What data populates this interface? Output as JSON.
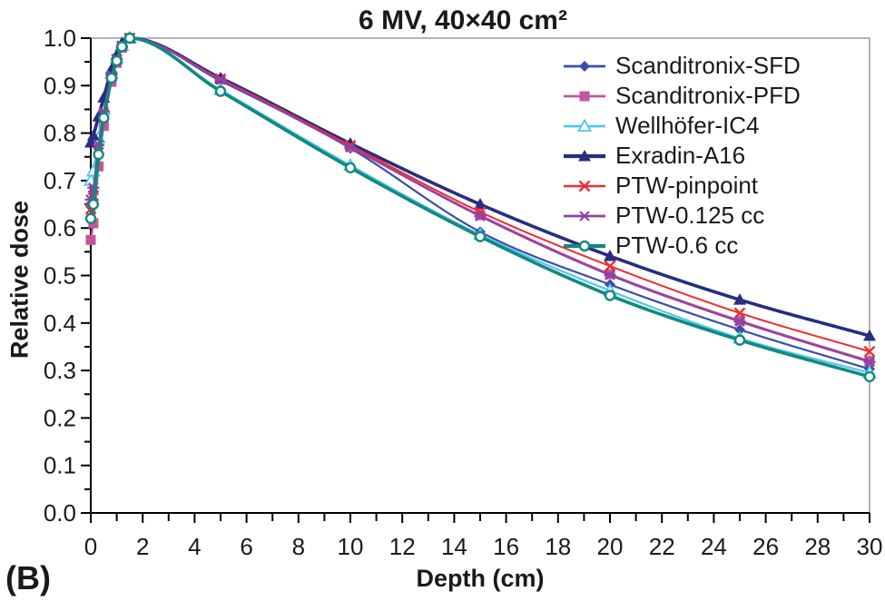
{
  "figure_label": "(B)",
  "chart_data": {
    "type": "line",
    "title": "6 MV, 40×40 cm²",
    "xlabel": "Depth (cm)",
    "ylabel": "Relative dose",
    "xlim": [
      0,
      30
    ],
    "ylim": [
      0.0,
      1.0
    ],
    "x_major_tick_step": 2,
    "x_minor_tick_step": 1,
    "y_major_tick_step": 0.1,
    "y_minor_tick_step": 0.05,
    "grid": false,
    "legend_position": "top-right",
    "frame_color": "#b3b3b3",
    "axis_color": "#000000",
    "x": [
      0,
      0.1,
      0.3,
      0.5,
      0.8,
      1.0,
      1.2,
      1.5,
      5,
      10,
      15,
      20,
      25,
      30
    ],
    "series": [
      {
        "name": "Scanditronix-SFD",
        "color": "#3d4ea8",
        "marker": "diamond",
        "line_width": 2.2,
        "values": [
          0.645,
          0.672,
          0.768,
          0.84,
          0.92,
          0.955,
          0.983,
          1.0,
          0.91,
          0.768,
          0.592,
          0.481,
          0.386,
          0.303
        ]
      },
      {
        "name": "Scanditronix-PFD",
        "color": "#c4549b",
        "marker": "square",
        "line_width": 2.2,
        "values": [
          0.575,
          0.61,
          0.73,
          0.815,
          0.908,
          0.948,
          0.98,
          1.0,
          0.913,
          0.771,
          0.627,
          0.503,
          0.405,
          0.32
        ]
      },
      {
        "name": "Wellhöfer-IC4",
        "color": "#4fc8ee",
        "marker": "triangle-open",
        "line_width": 2.2,
        "values": [
          0.7,
          0.72,
          0.79,
          0.85,
          0.925,
          0.958,
          0.985,
          1.0,
          0.891,
          0.732,
          0.586,
          0.468,
          0.368,
          0.295
        ]
      },
      {
        "name": "Exradin-A16",
        "color": "#272d80",
        "marker": "triangle-filled",
        "line_width": 3.6,
        "values": [
          0.78,
          0.795,
          0.835,
          0.875,
          0.935,
          0.965,
          0.99,
          1.0,
          0.916,
          0.778,
          0.65,
          0.541,
          0.449,
          0.373
        ]
      },
      {
        "name": "PTW-pinpoint",
        "color": "#ef2d2d",
        "marker": "x",
        "line_width": 2.0,
        "values": [
          0.64,
          0.668,
          0.766,
          0.839,
          0.92,
          0.955,
          0.983,
          1.0,
          0.914,
          0.774,
          0.634,
          0.52,
          0.421,
          0.34
        ]
      },
      {
        "name": "PTW-0.125 cc",
        "color": "#9141a3",
        "marker": "asterisk",
        "line_width": 2.2,
        "values": [
          0.66,
          0.685,
          0.775,
          0.845,
          0.922,
          0.956,
          0.984,
          1.0,
          0.912,
          0.77,
          0.625,
          0.501,
          0.403,
          0.318
        ]
      },
      {
        "name": "PTW-0.6 cc",
        "color": "#12897f",
        "marker": "circle-open",
        "line_width": 3.6,
        "values": [
          0.62,
          0.65,
          0.755,
          0.832,
          0.916,
          0.952,
          0.982,
          1.0,
          0.888,
          0.727,
          0.582,
          0.458,
          0.364,
          0.287
        ]
      }
    ]
  }
}
